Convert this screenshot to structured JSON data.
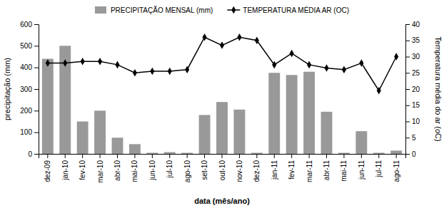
{
  "chart_data": {
    "type": "bar",
    "categories": [
      "dez-09",
      "jan-10",
      "fev-10",
      "mar-10",
      "abr-10",
      "mai-10",
      "jun-10",
      "jul-10",
      "ago-10",
      "set-10",
      "out-10",
      "nov-10",
      "dez-10",
      "jan-11",
      "fev-11",
      "mar-11",
      "abr-11",
      "mai-11",
      "jun-11",
      "jul-11",
      "ago-11"
    ],
    "xlabel": "data (mês/ano)",
    "ylabel": "precipitação (mm)",
    "y2label": "Temperatura média do ar (oC)",
    "ylim": [
      0,
      600
    ],
    "yticks": [
      0,
      100,
      200,
      300,
      400,
      500,
      600
    ],
    "y2lim": [
      0,
      40
    ],
    "y2ticks": [
      0,
      5,
      10,
      15,
      20,
      25,
      30,
      35,
      40
    ],
    "legend": "top",
    "series": [
      {
        "name": "PRECIPITAÇÃO MENSAL (mm)",
        "type": "bar",
        "color": "#999999",
        "values": [
          440,
          500,
          150,
          200,
          75,
          45,
          5,
          8,
          5,
          180,
          240,
          205,
          5,
          375,
          365,
          380,
          195,
          5,
          105,
          5,
          15
        ]
      },
      {
        "name": "TEMPERATURA MÉDIA AR (OC)",
        "type": "line",
        "axis": "y2",
        "color": "#000000",
        "marker": "diamond",
        "values": [
          28,
          28,
          28.5,
          28.5,
          27.5,
          25,
          25.5,
          25.5,
          26,
          36,
          33.5,
          36,
          35,
          27.5,
          31,
          27.5,
          26.5,
          26,
          28,
          19.5,
          30
        ]
      }
    ]
  }
}
